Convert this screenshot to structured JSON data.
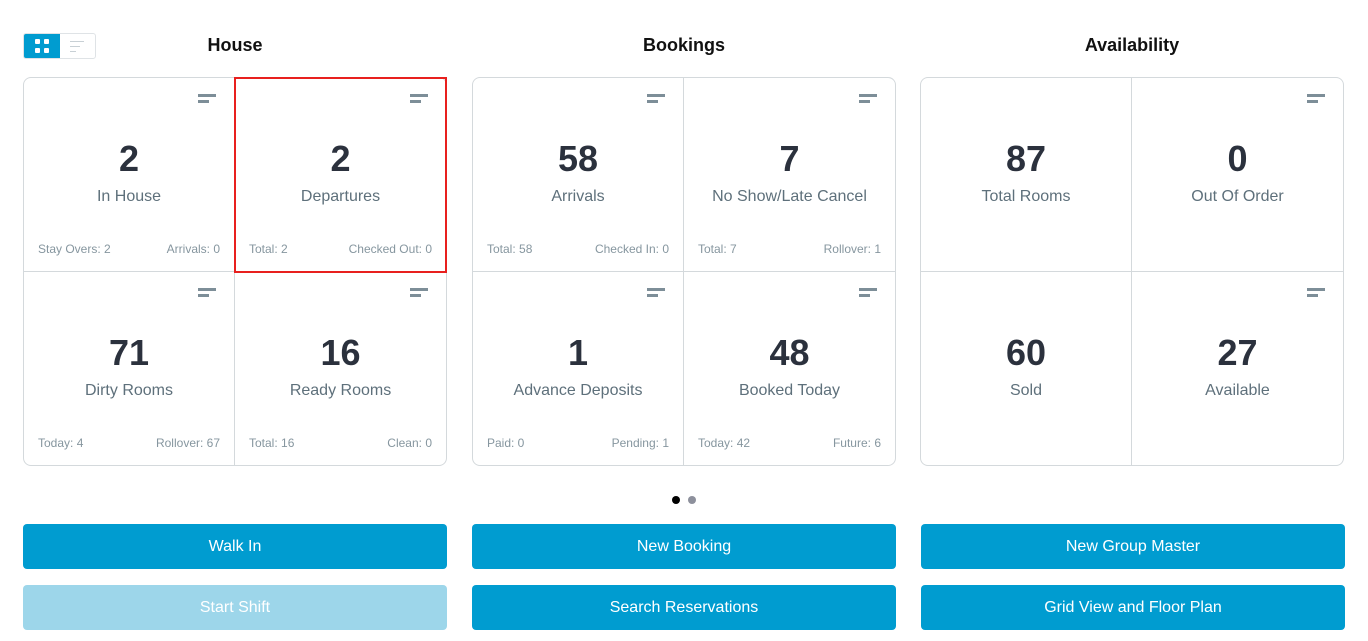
{
  "view_toggle": {
    "grid_icon": "grid-icon",
    "list_icon": "list-icon",
    "active": "grid"
  },
  "columns": [
    {
      "title": "House",
      "cells": [
        {
          "value": "2",
          "label": "In House",
          "left": "Stay Overs: 2",
          "right": "Arrivals: 0"
        },
        {
          "value": "2",
          "label": "Departures",
          "left": "Total: 2",
          "right": "Checked Out: 0",
          "highlighted": true
        },
        {
          "value": "71",
          "label": "Dirty Rooms",
          "left": "Today: 4",
          "right": "Rollover: 67"
        },
        {
          "value": "16",
          "label": "Ready Rooms",
          "left": "Total: 16",
          "right": "Clean: 0"
        }
      ]
    },
    {
      "title": "Bookings",
      "cells": [
        {
          "value": "58",
          "label": "Arrivals",
          "left": "Total: 58",
          "right": "Checked In: 0"
        },
        {
          "value": "7",
          "label": "No Show/Late Cancel",
          "left": "Total: 7",
          "right": "Rollover: 1"
        },
        {
          "value": "1",
          "label": "Advance Deposits",
          "left": "Paid: 0",
          "right": "Pending: 1"
        },
        {
          "value": "48",
          "label": "Booked Today",
          "left": "Today: 42",
          "right": "Future: 6"
        }
      ]
    },
    {
      "title": "Availability",
      "cells": [
        {
          "value": "87",
          "label": "Total Rooms",
          "left": "",
          "right": ""
        },
        {
          "value": "0",
          "label": "Out Of Order",
          "left": "",
          "right": ""
        },
        {
          "value": "60",
          "label": "Sold",
          "left": "",
          "right": ""
        },
        {
          "value": "27",
          "label": "Available",
          "left": "",
          "right": ""
        }
      ]
    }
  ],
  "pager": {
    "pages": 2,
    "current": 1
  },
  "buttons": {
    "walk_in": "Walk In",
    "new_booking": "New Booking",
    "new_group_master": "New Group Master",
    "start_shift": "Start Shift",
    "search_reservations": "Search Reservations",
    "grid_view": "Grid View and Floor Plan"
  },
  "colors": {
    "primary": "#009cd0",
    "disabled": "#9dd6ea",
    "highlight": "#e8201e"
  }
}
